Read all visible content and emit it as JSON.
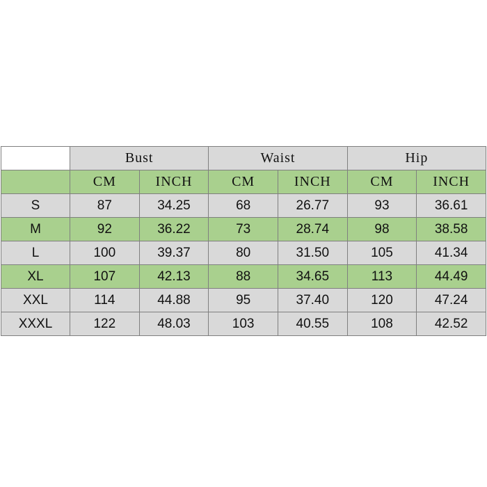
{
  "groups": [
    "Bust",
    "Waist",
    "Hip"
  ],
  "units": [
    "CM",
    "INCH",
    "CM",
    "INCH",
    "CM",
    "INCH"
  ],
  "colors": {
    "gray": "#d9d9d9",
    "green": "#a9d08e"
  },
  "rows": [
    {
      "size": "S",
      "values": [
        "87",
        "34.25",
        "68",
        "26.77",
        "93",
        "36.61"
      ]
    },
    {
      "size": "M",
      "values": [
        "92",
        "36.22",
        "73",
        "28.74",
        "98",
        "38.58"
      ]
    },
    {
      "size": "L",
      "values": [
        "100",
        "39.37",
        "80",
        "31.50",
        "105",
        "41.34"
      ]
    },
    {
      "size": "XL",
      "values": [
        "107",
        "42.13",
        "88",
        "34.65",
        "113",
        "44.49"
      ]
    },
    {
      "size": "XXL",
      "values": [
        "114",
        "44.88",
        "95",
        "37.40",
        "120",
        "47.24"
      ]
    },
    {
      "size": "XXXL",
      "values": [
        "122",
        "48.03",
        "103",
        "40.55",
        "108",
        "42.52"
      ]
    }
  ]
}
